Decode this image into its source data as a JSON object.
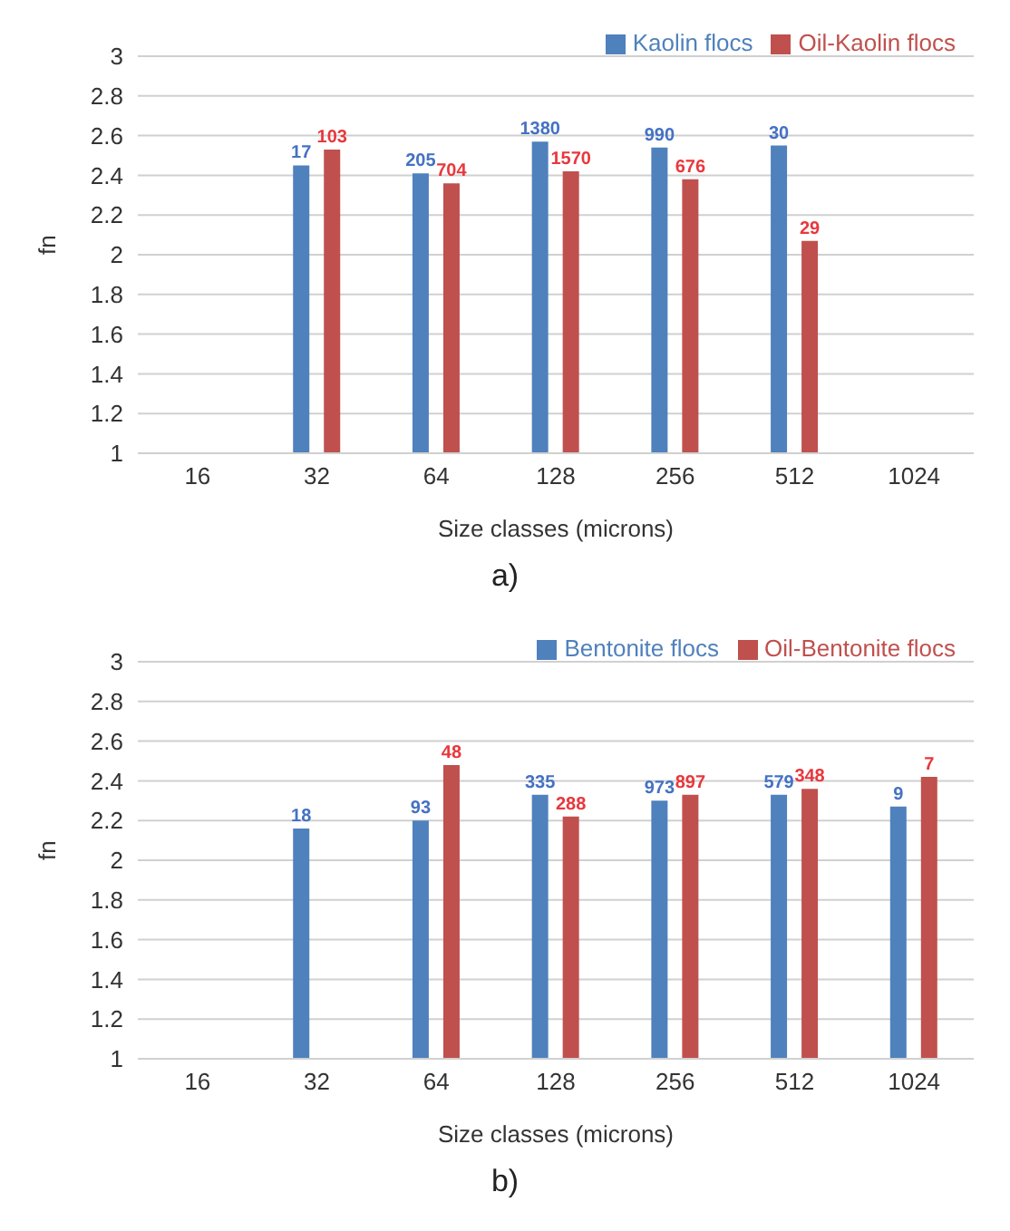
{
  "chart_data": [
    {
      "type": "bar",
      "categories": [
        "16",
        "32",
        "64",
        "128",
        "256",
        "512",
        "1024"
      ],
      "xlabel": "Size classes (microns)",
      "ylabel": "fn",
      "ylim": [
        1,
        3
      ],
      "yticks": [
        1,
        1.2,
        1.4,
        1.6,
        1.8,
        2,
        2.2,
        2.4,
        2.6,
        2.8,
        3
      ],
      "grid": "y",
      "legend": "top right",
      "annotations": [
        "a)",
        {
          "text": "17",
          "x": "32",
          "y": 2.45
        },
        {
          "text": "205",
          "x": "64",
          "y": 2.41
        },
        {
          "text": "1380",
          "x": "128",
          "y": 2.57
        },
        {
          "text": "990",
          "x": "256",
          "y": 2.54
        },
        {
          "text": "30",
          "x": "512",
          "y": 2.55
        },
        {
          "text": "103",
          "x": "32",
          "y": 2.53
        },
        {
          "text": "704",
          "x": "64",
          "y": 2.36
        },
        {
          "text": "1570",
          "x": "128",
          "y": 2.42
        },
        {
          "text": "676",
          "x": "256",
          "y": 2.38
        },
        {
          "text": "29",
          "x": "512",
          "y": 2.07
        }
      ],
      "series": [
        {
          "name": "Kaolin flocs",
          "color": "#4f81bd",
          "values": [
            null,
            2.45,
            2.41,
            2.57,
            2.54,
            2.55,
            null
          ]
        },
        {
          "name": "Oil-Kaolin flocs",
          "color": "#c0504d",
          "values": [
            null,
            2.53,
            2.36,
            2.42,
            2.38,
            2.07,
            null
          ]
        }
      ]
    },
    {
      "type": "bar",
      "categories": [
        "16",
        "32",
        "64",
        "128",
        "256",
        "512",
        "1024"
      ],
      "xlabel": "Size classes (microns)",
      "ylabel": "fn",
      "ylim": [
        1,
        3
      ],
      "yticks": [
        1,
        1.2,
        1.4,
        1.6,
        1.8,
        2,
        2.2,
        2.4,
        2.6,
        2.8,
        3
      ],
      "grid": "y",
      "legend": "top right",
      "annotations": [
        "b)",
        {
          "text": "18",
          "x": "32",
          "y": 2.16
        },
        {
          "text": "93",
          "x": "64",
          "y": 2.2
        },
        {
          "text": "335",
          "x": "128",
          "y": 2.33
        },
        {
          "text": "973",
          "x": "256",
          "y": 2.3
        },
        {
          "text": "579",
          "x": "512",
          "y": 2.33
        },
        {
          "text": "9",
          "x": "1024",
          "y": 2.27
        },
        {
          "text": "48",
          "x": "64",
          "y": 2.48
        },
        {
          "text": "288",
          "x": "128",
          "y": 2.22
        },
        {
          "text": "897",
          "x": "256",
          "y": 2.33
        },
        {
          "text": "348",
          "x": "512",
          "y": 2.36
        },
        {
          "text": "7",
          "x": "1024",
          "y": 2.42
        }
      ],
      "series": [
        {
          "name": "Bentonite flocs",
          "color": "#4f81bd",
          "values": [
            null,
            2.16,
            2.2,
            2.33,
            2.3,
            2.33,
            2.27
          ]
        },
        {
          "name": "Oil-Bentonite flocs",
          "color": "#c0504d",
          "values": [
            null,
            null,
            2.48,
            2.22,
            2.33,
            2.36,
            2.42
          ]
        }
      ]
    }
  ]
}
